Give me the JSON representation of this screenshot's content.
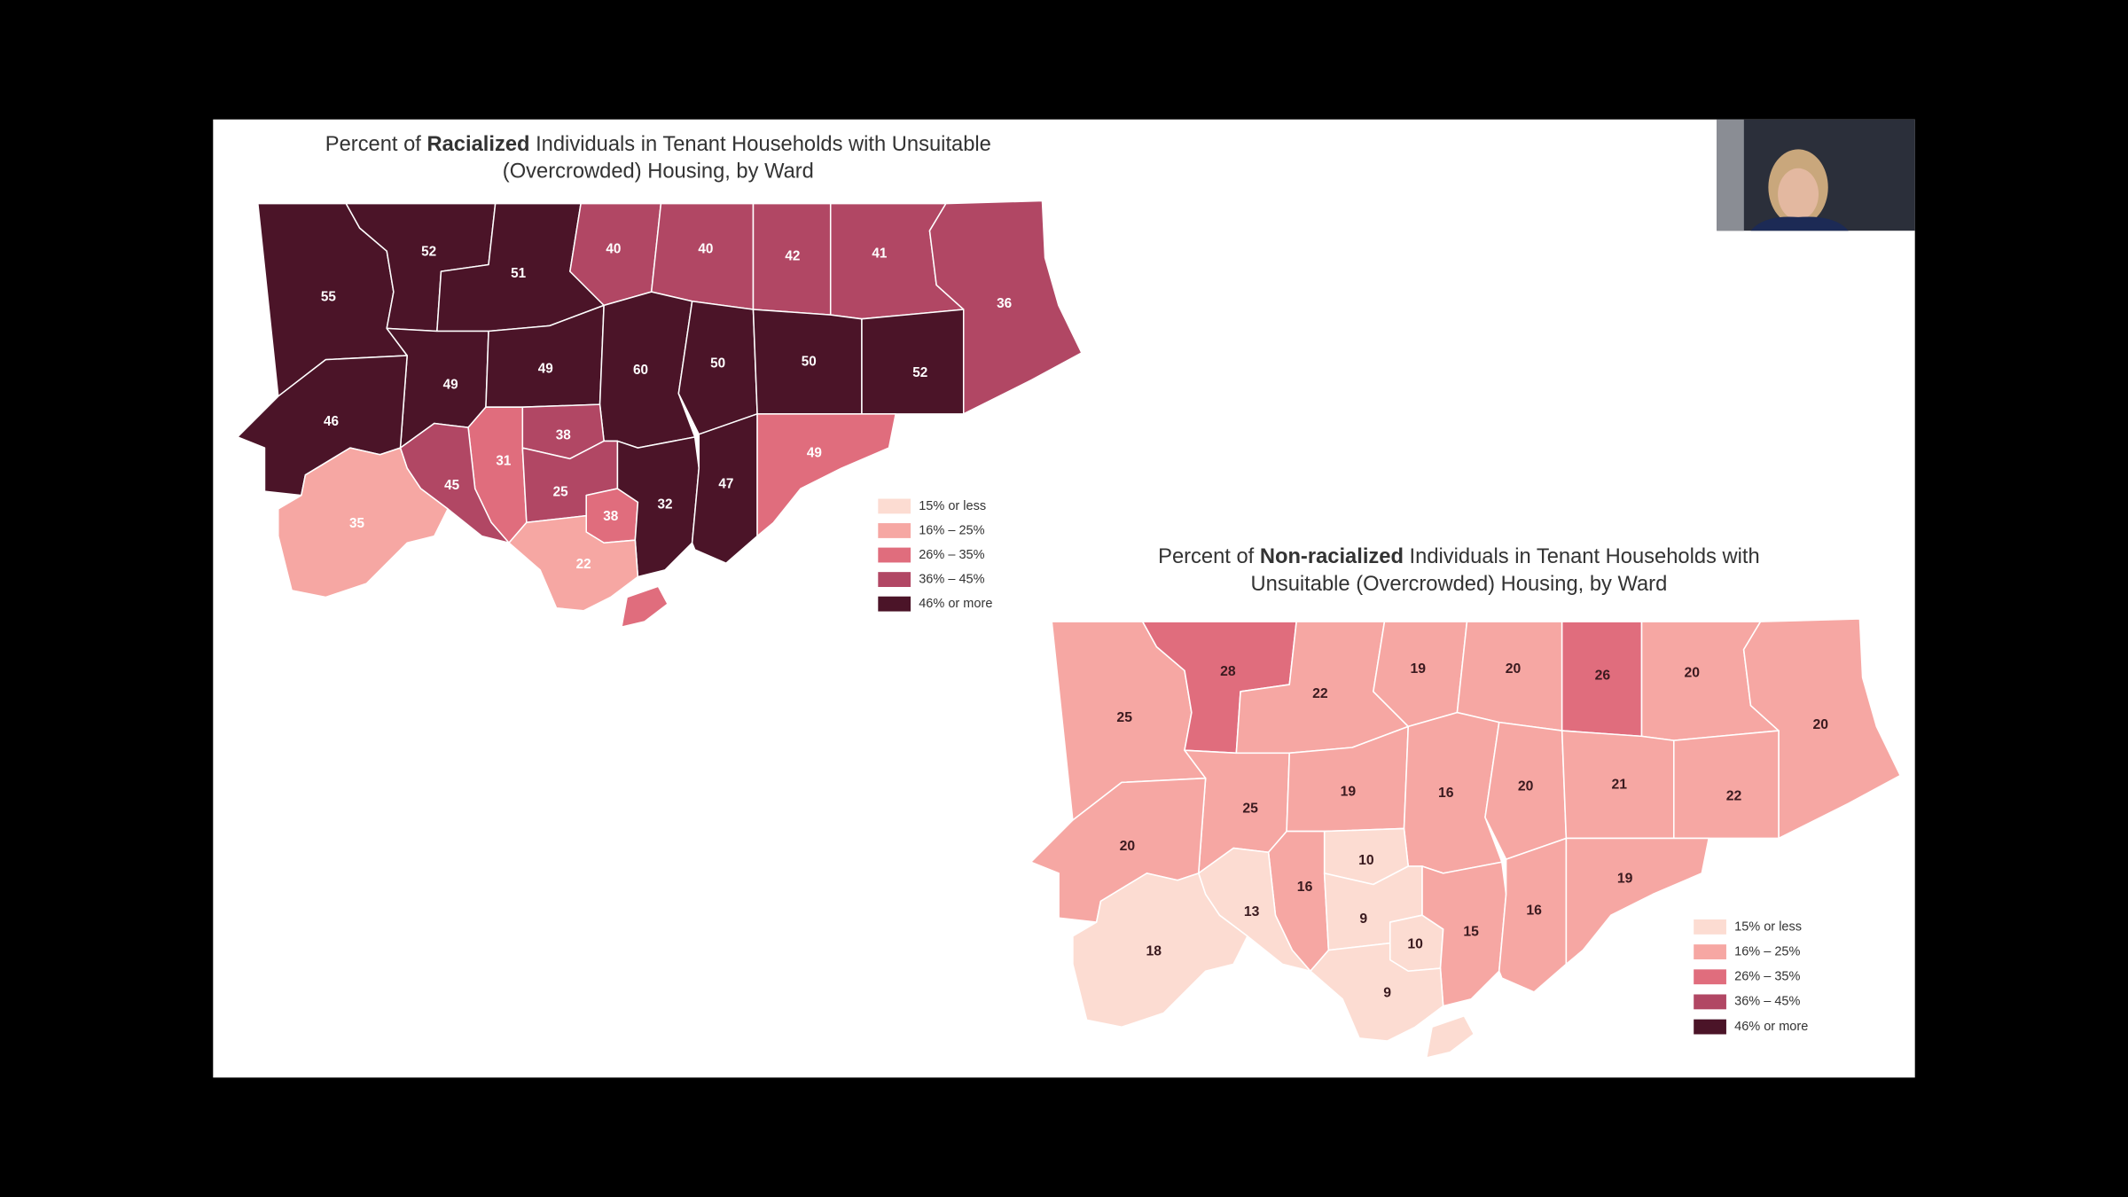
{
  "maps": [
    {
      "title": {
        "line1": [
          "Percent of ",
          "Racialized",
          " Individuals in Tenant Households with Unsuitable"
        ],
        "line2": "(Overcrowded) Housing, by Ward"
      },
      "values": [
        55,
        52,
        51,
        40,
        40,
        42,
        41,
        36,
        49,
        49,
        60,
        50,
        50,
        52,
        46,
        38,
        31,
        45,
        25,
        38,
        32,
        47,
        49,
        35,
        22
      ],
      "label_color": "#ffffff",
      "legend": [
        {
          "label": "15% or less",
          "color": "#fcdcd2",
          "max": 15
        },
        {
          "label": "16% – 25%",
          "color": "#f6a7a3",
          "max": 25
        },
        {
          "label": "26% – 35%",
          "color": "#e06d7d",
          "max": 35
        },
        {
          "label": "36% – 45%",
          "color": "#b14764",
          "max": 45
        },
        {
          "label": "46% or more",
          "color": "#4b1428"
        }
      ]
    },
    {
      "title": {
        "line1": [
          "Percent of ",
          "Non-racialized",
          " Individuals in Tenant Households with"
        ],
        "line2": "Unsuitable (Overcrowded) Housing, by Ward"
      },
      "values": [
        25,
        28,
        22,
        19,
        20,
        26,
        20,
        20,
        25,
        19,
        16,
        20,
        21,
        22,
        20,
        10,
        16,
        13,
        9,
        10,
        15,
        16,
        19,
        18,
        9
      ],
      "label_color": "#3a1a1f",
      "legend": [
        {
          "label": "15% or less",
          "color": "#fcdcd2",
          "max": 15
        },
        {
          "label": "16% – 25%",
          "color": "#f6a7a3",
          "max": 25
        },
        {
          "label": "26% – 35%",
          "color": "#e06d7d",
          "max": 35
        },
        {
          "label": "36% – 45%",
          "color": "#b14764",
          "max": 45
        },
        {
          "label": "46% or more",
          "color": "#4b1428"
        }
      ]
    }
  ]
}
